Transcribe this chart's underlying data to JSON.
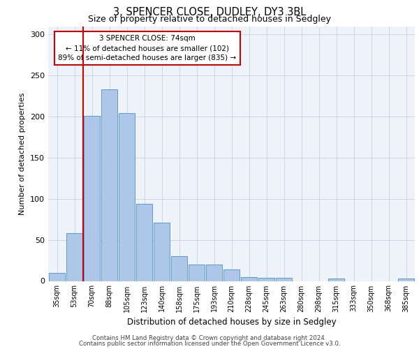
{
  "title_line1": "3, SPENCER CLOSE, DUDLEY, DY3 3BL",
  "title_line2": "Size of property relative to detached houses in Sedgley",
  "xlabel": "Distribution of detached houses by size in Sedgley",
  "ylabel": "Number of detached properties",
  "categories": [
    "35sqm",
    "53sqm",
    "70sqm",
    "88sqm",
    "105sqm",
    "123sqm",
    "140sqm",
    "158sqm",
    "175sqm",
    "193sqm",
    "210sqm",
    "228sqm",
    "245sqm",
    "263sqm",
    "280sqm",
    "298sqm",
    "315sqm",
    "333sqm",
    "350sqm",
    "368sqm",
    "385sqm"
  ],
  "values": [
    10,
    58,
    201,
    233,
    204,
    94,
    71,
    30,
    20,
    20,
    14,
    5,
    4,
    4,
    0,
    0,
    3,
    0,
    0,
    0,
    3
  ],
  "bar_color": "#aec6e8",
  "bar_edge_color": "#5b9bd5",
  "highlight_bar_index": 2,
  "highlight_line_color": "#cc0000",
  "annotation_text": "3 SPENCER CLOSE: 74sqm\n← 11% of detached houses are smaller (102)\n89% of semi-detached houses are larger (835) →",
  "annotation_box_color": "#ffffff",
  "annotation_box_edge": "#cc0000",
  "ylim": [
    0,
    310
  ],
  "yticks": [
    0,
    50,
    100,
    150,
    200,
    250,
    300
  ],
  "bg_color": "#eef2f9",
  "footer_line1": "Contains HM Land Registry data © Crown copyright and database right 2024.",
  "footer_line2": "Contains public sector information licensed under the Open Government Licence v3.0."
}
